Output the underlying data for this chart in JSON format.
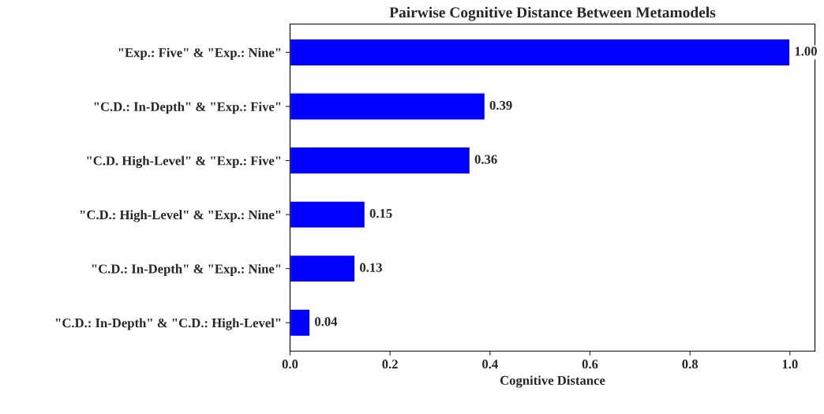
{
  "chart_data": {
    "type": "bar",
    "orientation": "horizontal",
    "title": "Pairwise Cognitive Distance Between Metamodels",
    "xlabel": "Cognitive Distance",
    "categories": [
      "\"Exp.: Five\" & \"Exp.: Nine\"",
      "\"C.D.: In-Depth\" & \"Exp.: Five\"",
      "\"C.D. High-Level\" & \"Exp.: Five\"",
      "\"C.D.: High-Level\" & \"Exp.: Nine\"",
      "\"C.D.: In-Depth\" & \"Exp.: Nine\"",
      "\"C.D.: In-Depth\" & \"C.D.: High-Level\""
    ],
    "values": [
      1.0,
      0.39,
      0.36,
      0.15,
      0.13,
      0.04
    ],
    "value_labels": [
      "1.00",
      "0.39",
      "0.36",
      "0.15",
      "0.13",
      "0.04"
    ],
    "color": "#0000ff",
    "xlim": [
      0,
      1.05
    ],
    "xticks": [
      {
        "value": 0,
        "label": "0.0"
      },
      0.2,
      0.4,
      0.6,
      0.8,
      {
        "value": 1,
        "label": "1.0"
      }
    ],
    "grid": false
  }
}
